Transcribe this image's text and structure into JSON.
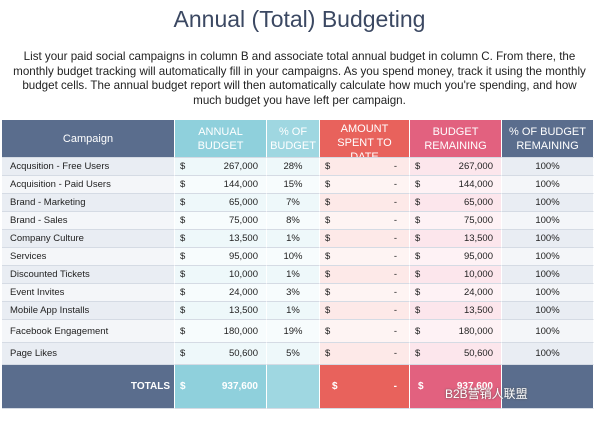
{
  "title": "Annual (Total) Budgeting",
  "description": "List your paid social campaigns in column B and associate total annual budget in column C. From there, the monthly budget tracking will automatically fill in your campaigns. As you spend money, track it using the monthly budget cells. The annual budget report will then automatically calculate how much you're spending, and how much budget you have left per campaign.",
  "table": {
    "columns": [
      "Campaign",
      "ANNUAL BUDGET",
      "% OF BUDGET",
      "AMOUNT SPENT TO DATE",
      "BUDGET REMAINING",
      "% OF BUDGET REMAINING"
    ],
    "rows": [
      [
        "Acqusition - Free Users",
        "$",
        "267,000",
        "28%",
        "$",
        "-",
        "$",
        "267,000",
        "100%"
      ],
      [
        "Acquisition - Paid Users",
        "$",
        "144,000",
        "15%",
        "$",
        "-",
        "$",
        "144,000",
        "100%"
      ],
      [
        "Brand - Marketing",
        "$",
        "65,000",
        "7%",
        "$",
        "-",
        "$",
        "65,000",
        "100%"
      ],
      [
        "Brand - Sales",
        "$",
        "75,000",
        "8%",
        "$",
        "-",
        "$",
        "75,000",
        "100%"
      ],
      [
        "Company Culture",
        "$",
        "13,500",
        "1%",
        "$",
        "-",
        "$",
        "13,500",
        "100%"
      ],
      [
        "Services",
        "$",
        "95,000",
        "10%",
        "$",
        "-",
        "$",
        "95,000",
        "100%"
      ],
      [
        "Discounted Tickets",
        "$",
        "10,000",
        "1%",
        "$",
        "-",
        "$",
        "10,000",
        "100%"
      ],
      [
        "Event Invites",
        "$",
        "24,000",
        "3%",
        "$",
        "-",
        "$",
        "24,000",
        "100%"
      ],
      [
        "Mobile App Installs",
        "$",
        "13,500",
        "1%",
        "$",
        "-",
        "$",
        "13,500",
        "100%"
      ],
      [
        "Facebook Engagement",
        "$",
        "180,000",
        "19%",
        "$",
        "-",
        "$",
        "180,000",
        "100%"
      ],
      [
        "Page Likes",
        "$",
        "50,600",
        "5%",
        "$",
        "-",
        "$",
        "50,600",
        "100%"
      ]
    ],
    "totals": [
      "TOTALS",
      "$",
      "937,600",
      "$",
      "-",
      "$",
      "937,600"
    ]
  },
  "watermark": "B2B营销人联盟"
}
